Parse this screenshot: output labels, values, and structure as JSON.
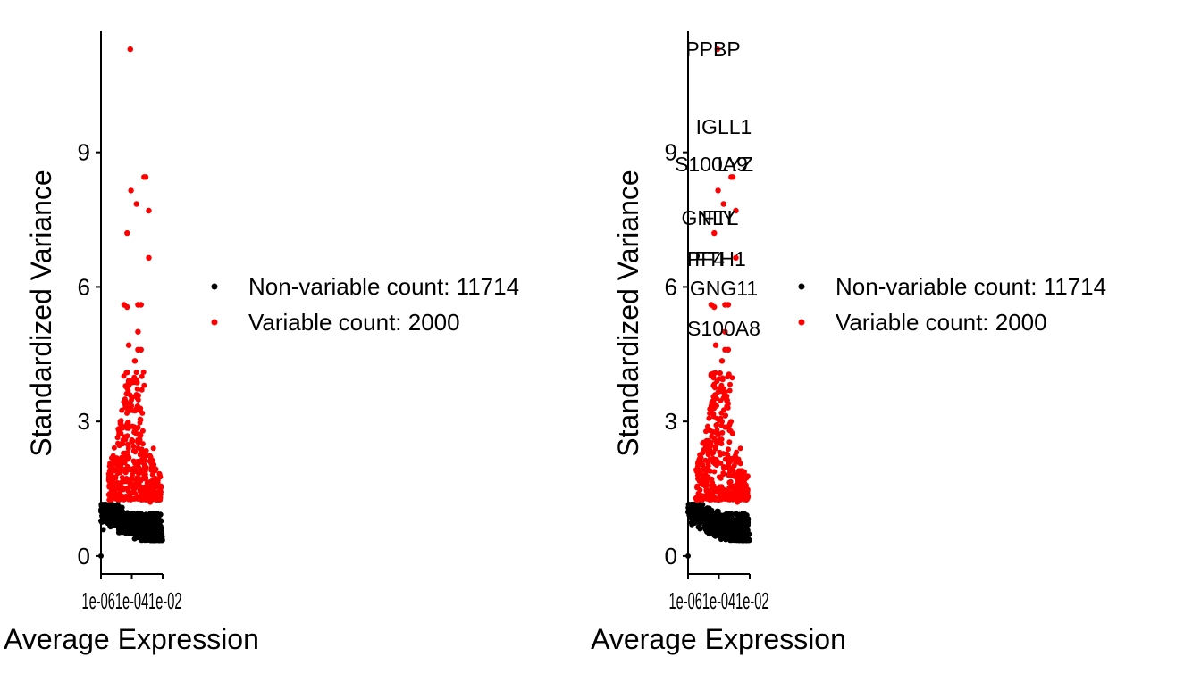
{
  "colors": {
    "non_variable": "#000000",
    "variable": "#ff0000",
    "axis": "#000000",
    "background": "#ffffff"
  },
  "chart_data": [
    {
      "type": "scatter",
      "title": "",
      "xlabel": "Average Expression",
      "ylabel": "Standardized Variance",
      "xscale": "log10",
      "xlim": [
        1e-06,
        0.01
      ],
      "ylim": [
        -0.4,
        11.7
      ],
      "x_ticks": [
        "1e-06",
        "1e-04",
        "1e-02"
      ],
      "x_tick_values": [
        1e-06,
        0.0001,
        0.01
      ],
      "x_tick_label_text": "1e-061e-041e-02",
      "y_ticks": [
        0,
        3,
        6,
        9
      ],
      "y_tick_labels": [
        "0",
        "3",
        "6",
        "9"
      ],
      "grid": false,
      "legend": "right",
      "series": [
        {
          "name": "Non-variable count: 11714",
          "color": "#000000",
          "count": 11714
        },
        {
          "name": "Variable count: 2000",
          "color": "#ff0000",
          "count": 2000
        }
      ],
      "labeled_genes": []
    },
    {
      "type": "scatter",
      "title": "",
      "xlabel": "Average Expression",
      "ylabel": "Standardized Variance",
      "xscale": "log10",
      "xlim": [
        1e-06,
        0.01
      ],
      "ylim": [
        -0.4,
        11.7
      ],
      "x_ticks": [
        "1e-06",
        "1e-04",
        "1e-02"
      ],
      "x_tick_values": [
        1e-06,
        0.0001,
        0.01
      ],
      "x_tick_label_text": "1e-061e-041e-02",
      "y_ticks": [
        0,
        3,
        6,
        9
      ],
      "y_tick_labels": [
        "0",
        "3",
        "6",
        "9"
      ],
      "grid": false,
      "legend": "right",
      "series": [
        {
          "name": "Non-variable count: 11714",
          "color": "#000000",
          "count": 11714
        },
        {
          "name": "Variable count: 2000",
          "color": "#ff0000",
          "count": 2000
        }
      ],
      "labeled_genes": [
        "PPBP",
        "IGLL1",
        "S100A9",
        "LYZ",
        "GNLY",
        "FTL",
        "PF4",
        "FTH1",
        "GNG11",
        "S100A8"
      ]
    }
  ]
}
